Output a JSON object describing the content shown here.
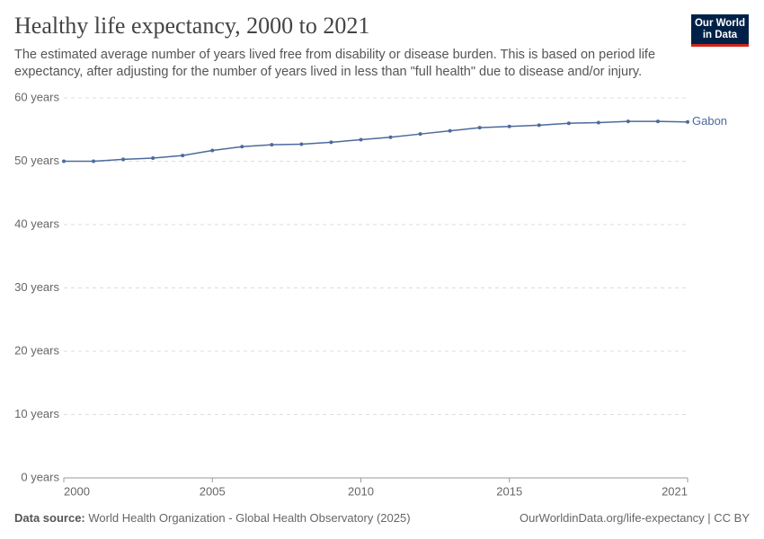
{
  "chart_data": {
    "type": "line",
    "title": "Healthy life expectancy, 2000 to 2021",
    "subtitle": "The estimated average number of years lived free from disability or disease burden. This is based on period life expectancy, after adjusting for the number of years lived in less than \"full health\" due to disease and/or injury.",
    "logo_lines": [
      "Our World",
      "in Data"
    ],
    "source_label": "Data source:",
    "source": "World Health Organization - Global Health Observatory (2025)",
    "license_note": "OurWorldinData.org/life-expectancy | CC BY",
    "x": [
      2000,
      2001,
      2002,
      2003,
      2004,
      2005,
      2006,
      2007,
      2008,
      2009,
      2010,
      2011,
      2012,
      2013,
      2014,
      2015,
      2016,
      2017,
      2018,
      2019,
      2020,
      2021
    ],
    "series": [
      {
        "name": "Gabon",
        "color": "#4c6a9c",
        "values": [
          50.0,
          50.0,
          50.3,
          50.5,
          50.9,
          51.7,
          52.3,
          52.6,
          52.7,
          53.0,
          53.4,
          53.8,
          54.3,
          54.8,
          55.3,
          55.5,
          55.7,
          56.0,
          56.1,
          56.3,
          56.3,
          56.2
        ]
      }
    ],
    "xlim": [
      2000,
      2021
    ],
    "xticks": [
      2000,
      2005,
      2010,
      2015,
      2021
    ],
    "ylim": [
      0,
      60
    ],
    "yticks": [
      {
        "value": 0,
        "label": "0 years"
      },
      {
        "value": 10,
        "label": "10 years"
      },
      {
        "value": 20,
        "label": "20 years"
      },
      {
        "value": 30,
        "label": "30 years"
      },
      {
        "value": 40,
        "label": "40 years"
      },
      {
        "value": 50,
        "label": "50 years"
      },
      {
        "value": 60,
        "label": "60 years"
      }
    ],
    "grid": true
  }
}
